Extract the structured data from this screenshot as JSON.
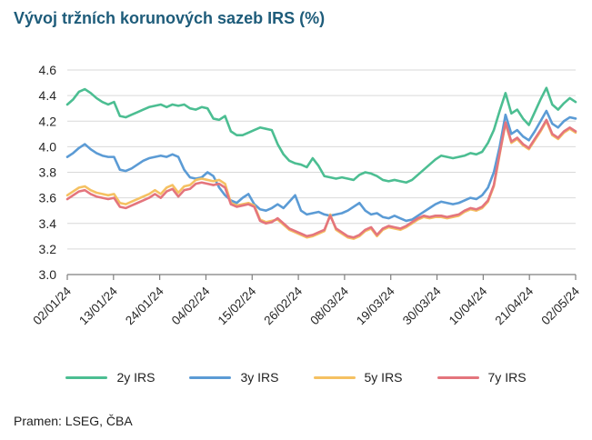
{
  "title": "Vývoj tržních korunových sazeb IRS (%)",
  "source": "Pramen: LSEG, ČBA",
  "colors": {
    "title_text": "#1E5C7A",
    "axis_text": "#262626",
    "gridline": "#D9D9D9",
    "axis_line": "#7F7F7F"
  },
  "chart_data": {
    "type": "line",
    "title": "Vývoj tržních korunových sazeb IRS (%)",
    "xlabel": "",
    "ylabel": "",
    "ylim": [
      3.0,
      4.6
    ],
    "y_ticks": [
      3.0,
      3.2,
      3.4,
      3.6,
      3.8,
      4.0,
      4.2,
      4.4,
      4.6
    ],
    "grid": true,
    "legend_position": "bottom",
    "x_tick_labels": [
      "02/01/24",
      "13/01/24",
      "24/01/24",
      "04/02/24",
      "15/02/24",
      "26/02/24",
      "08/03/24",
      "19/03/24",
      "30/03/24",
      "10/04/24",
      "21/04/24",
      "02/05/24"
    ],
    "series": [
      {
        "name": "2y IRS",
        "color": "#4CBE92",
        "values": [
          4.33,
          4.37,
          4.43,
          4.45,
          4.42,
          4.38,
          4.35,
          4.33,
          4.35,
          4.24,
          4.23,
          4.25,
          4.27,
          4.29,
          4.31,
          4.32,
          4.33,
          4.31,
          4.33,
          4.32,
          4.33,
          4.3,
          4.29,
          4.31,
          4.3,
          4.22,
          4.21,
          4.24,
          4.12,
          4.09,
          4.09,
          4.11,
          4.13,
          4.15,
          4.14,
          4.13,
          4.02,
          3.94,
          3.89,
          3.87,
          3.86,
          3.84,
          3.91,
          3.85,
          3.77,
          3.76,
          3.75,
          3.76,
          3.75,
          3.74,
          3.78,
          3.8,
          3.79,
          3.77,
          3.74,
          3.73,
          3.74,
          3.73,
          3.72,
          3.74,
          3.78,
          3.82,
          3.86,
          3.9,
          3.93,
          3.92,
          3.91,
          3.92,
          3.93,
          3.95,
          3.94,
          3.96,
          4.03,
          4.13,
          4.28,
          4.42,
          4.26,
          4.29,
          4.22,
          4.17,
          4.27,
          4.37,
          4.46,
          4.33,
          4.29,
          4.34,
          4.38,
          4.35
        ]
      },
      {
        "name": "3y IRS",
        "color": "#5B9BD5",
        "values": [
          3.92,
          3.95,
          3.99,
          4.02,
          3.98,
          3.95,
          3.93,
          3.92,
          3.92,
          3.82,
          3.81,
          3.83,
          3.86,
          3.89,
          3.91,
          3.92,
          3.93,
          3.92,
          3.94,
          3.92,
          3.82,
          3.76,
          3.75,
          3.76,
          3.8,
          3.77,
          3.68,
          3.62,
          3.58,
          3.56,
          3.6,
          3.63,
          3.55,
          3.51,
          3.5,
          3.52,
          3.55,
          3.52,
          3.57,
          3.62,
          3.5,
          3.47,
          3.48,
          3.49,
          3.47,
          3.46,
          3.47,
          3.48,
          3.5,
          3.53,
          3.56,
          3.5,
          3.47,
          3.48,
          3.45,
          3.44,
          3.46,
          3.44,
          3.42,
          3.43,
          3.46,
          3.49,
          3.52,
          3.55,
          3.57,
          3.56,
          3.55,
          3.56,
          3.58,
          3.6,
          3.59,
          3.62,
          3.68,
          3.8,
          4.0,
          4.25,
          4.1,
          4.13,
          4.08,
          4.05,
          4.12,
          4.2,
          4.28,
          4.18,
          4.15,
          4.2,
          4.23,
          4.22
        ]
      },
      {
        "name": "5y IRS",
        "color": "#F5C162",
        "values": [
          3.62,
          3.65,
          3.68,
          3.69,
          3.66,
          3.64,
          3.63,
          3.62,
          3.63,
          3.56,
          3.55,
          3.57,
          3.59,
          3.61,
          3.63,
          3.66,
          3.63,
          3.68,
          3.7,
          3.64,
          3.69,
          3.7,
          3.74,
          3.75,
          3.74,
          3.73,
          3.74,
          3.71,
          3.56,
          3.54,
          3.55,
          3.56,
          3.54,
          3.43,
          3.41,
          3.42,
          3.43,
          3.39,
          3.35,
          3.33,
          3.31,
          3.29,
          3.3,
          3.32,
          3.34,
          3.47,
          3.35,
          3.32,
          3.29,
          3.28,
          3.3,
          3.34,
          3.36,
          3.3,
          3.35,
          3.37,
          3.36,
          3.35,
          3.37,
          3.4,
          3.43,
          3.45,
          3.44,
          3.45,
          3.45,
          3.44,
          3.45,
          3.46,
          3.49,
          3.51,
          3.5,
          3.52,
          3.57,
          3.69,
          3.94,
          4.18,
          4.03,
          4.06,
          4.01,
          3.98,
          4.05,
          4.12,
          4.2,
          4.09,
          4.06,
          4.11,
          4.14,
          4.11
        ]
      },
      {
        "name": "7y IRS",
        "color": "#E4757D",
        "values": [
          3.59,
          3.62,
          3.65,
          3.66,
          3.63,
          3.61,
          3.6,
          3.59,
          3.6,
          3.53,
          3.52,
          3.54,
          3.56,
          3.58,
          3.6,
          3.63,
          3.6,
          3.65,
          3.67,
          3.61,
          3.66,
          3.67,
          3.71,
          3.72,
          3.71,
          3.7,
          3.71,
          3.68,
          3.55,
          3.53,
          3.54,
          3.55,
          3.53,
          3.42,
          3.4,
          3.41,
          3.44,
          3.4,
          3.36,
          3.34,
          3.32,
          3.3,
          3.31,
          3.33,
          3.35,
          3.46,
          3.36,
          3.33,
          3.3,
          3.29,
          3.31,
          3.35,
          3.37,
          3.31,
          3.36,
          3.38,
          3.37,
          3.36,
          3.38,
          3.41,
          3.44,
          3.46,
          3.45,
          3.46,
          3.46,
          3.45,
          3.46,
          3.47,
          3.5,
          3.52,
          3.51,
          3.53,
          3.58,
          3.7,
          3.95,
          4.19,
          4.04,
          4.07,
          4.02,
          3.99,
          4.06,
          4.13,
          4.21,
          4.1,
          4.07,
          4.12,
          4.15,
          4.12
        ]
      }
    ]
  }
}
